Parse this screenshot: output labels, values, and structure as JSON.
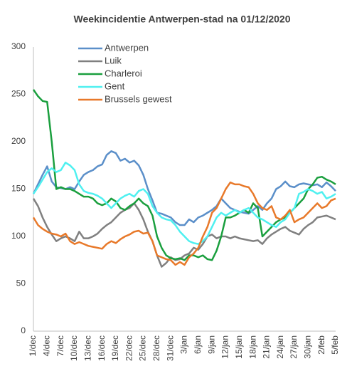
{
  "chart_data": {
    "type": "line",
    "title": "Weekincidentie  Antwerpen-stad  na 01/12/2020",
    "categories": [
      "1/dec",
      null,
      null,
      "4/dec",
      null,
      null,
      "7/dec",
      null,
      null,
      "10/dec",
      null,
      null,
      "13/dec",
      null,
      null,
      "16/dec",
      null,
      null,
      "19/dec",
      null,
      null,
      "22/dec",
      null,
      null,
      "25/dec",
      null,
      null,
      "28/dec",
      null,
      null,
      "31/dec",
      null,
      null,
      "3/jan",
      null,
      null,
      "6/jan",
      null,
      null,
      "9/jan",
      null,
      null,
      "12/jan",
      null,
      null,
      "15/jan",
      null,
      null,
      "18/jan",
      null,
      null,
      "21/jan",
      null,
      null,
      "24/jan",
      null,
      null,
      "27/jan",
      null,
      null,
      "30/jan",
      null,
      null,
      "2/feb",
      null,
      null,
      "5/feb"
    ],
    "series": [
      {
        "name": "Antwerpen",
        "color": "#5b8fc9",
        "values": [
          145,
          155,
          165,
          174,
          158,
          152,
          151,
          150,
          152,
          150,
          158,
          165,
          168,
          170,
          174,
          176,
          186,
          190,
          188,
          180,
          182,
          178,
          180,
          175,
          165,
          150,
          138,
          125,
          124,
          122,
          120,
          115,
          112,
          112,
          118,
          115,
          120,
          122,
          125,
          128,
          132,
          140,
          135,
          130,
          128,
          126,
          125,
          124,
          128,
          132,
          128,
          135,
          140,
          150,
          153,
          158,
          153,
          152,
          155,
          156,
          155,
          154,
          155,
          152,
          157,
          153,
          148
        ]
      },
      {
        "name": "Luik",
        "color": "#808080",
        "values": [
          140,
          132,
          120,
          110,
          102,
          95,
          98,
          100,
          98,
          95,
          105,
          98,
          98,
          100,
          103,
          108,
          112,
          115,
          120,
          125,
          128,
          130,
          135,
          128,
          118,
          105,
          95,
          80,
          68,
          72,
          78,
          75,
          76,
          80,
          82,
          88,
          86,
          92,
          100,
          102,
          98,
          100,
          100,
          98,
          100,
          98,
          97,
          96,
          95,
          96,
          92,
          98,
          102,
          105,
          108,
          110,
          106,
          104,
          102,
          108,
          112,
          115,
          120,
          121,
          122,
          120,
          118
        ]
      },
      {
        "name": "Charleroi",
        "color": "#1a9f3e",
        "values": [
          255,
          248,
          243,
          242,
          200,
          150,
          152,
          150,
          150,
          148,
          145,
          142,
          142,
          140,
          135,
          133,
          135,
          140,
          137,
          130,
          128,
          132,
          135,
          140,
          135,
          132,
          122,
          100,
          88,
          80,
          77,
          76,
          77,
          75,
          80,
          80,
          78,
          80,
          76,
          75,
          85,
          100,
          120,
          120,
          122,
          125,
          128,
          125,
          135,
          130,
          100,
          105,
          110,
          115,
          118,
          120,
          125,
          130,
          135,
          140,
          150,
          155,
          162,
          163,
          160,
          158,
          155
        ]
      },
      {
        "name": "Gent",
        "color": "#4ff0f0",
        "values": [
          145,
          152,
          160,
          168,
          172,
          168,
          170,
          178,
          175,
          170,
          155,
          148,
          146,
          145,
          143,
          140,
          135,
          130,
          135,
          140,
          143,
          145,
          142,
          148,
          150,
          145,
          132,
          125,
          120,
          118,
          117,
          112,
          105,
          100,
          95,
          93,
          92,
          95,
          100,
          110,
          120,
          125,
          122,
          125,
          128,
          125,
          128,
          130,
          125,
          120,
          118,
          115,
          112,
          110,
          115,
          118,
          125,
          130,
          145,
          147,
          150,
          148,
          145,
          147,
          140,
          142,
          145
        ]
      },
      {
        "name": "Brussels gewest",
        "color": "#e8792a",
        "values": [
          120,
          112,
          108,
          105,
          103,
          102,
          100,
          103,
          95,
          92,
          94,
          92,
          90,
          89,
          88,
          87,
          92,
          95,
          93,
          97,
          100,
          102,
          105,
          106,
          103,
          104,
          95,
          80,
          78,
          76,
          75,
          70,
          73,
          70,
          78,
          82,
          88,
          100,
          110,
          125,
          130,
          140,
          150,
          157,
          155,
          155,
          153,
          152,
          145,
          135,
          130,
          128,
          132,
          120,
          118,
          122,
          128,
          115,
          118,
          120,
          125,
          130,
          135,
          130,
          132,
          138,
          140
        ]
      }
    ],
    "ylim": [
      0,
      300
    ],
    "yticks": [
      0,
      50,
      100,
      150,
      200,
      250,
      300
    ],
    "grid": false,
    "legend": "top-left"
  }
}
